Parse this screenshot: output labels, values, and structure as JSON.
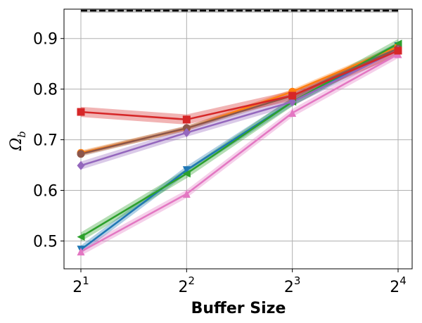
{
  "chart_data": {
    "type": "line",
    "xlabel": "Buffer Size",
    "ylabel": "Ω_b",
    "x": [
      2,
      4,
      8,
      16
    ],
    "x_scale": "log2",
    "xtick_labels": [
      {
        "base": "2",
        "exp": "1"
      },
      {
        "base": "2",
        "exp": "2"
      },
      {
        "base": "2",
        "exp": "3"
      },
      {
        "base": "2",
        "exp": "4"
      }
    ],
    "yticks": [
      0.5,
      0.6,
      0.7,
      0.8,
      0.9
    ],
    "ytick_labels": [
      "0.5",
      "0.6",
      "0.7",
      "0.8",
      "0.9"
    ],
    "ylim": [
      0.445,
      0.958
    ],
    "grid": true,
    "reference_line": {
      "value": 0.955,
      "band": 0.004,
      "style": "dashed",
      "color": "#000000"
    },
    "series": [
      {
        "color": "#1f77b4",
        "marker": "tri_down",
        "values": [
          0.483,
          0.64,
          0.775,
          0.885
        ],
        "band": 0.008
      },
      {
        "color": "#ff7f0e",
        "marker": "circle",
        "values": [
          0.674,
          0.722,
          0.795,
          0.884
        ],
        "band": 0.005
      },
      {
        "color": "#2ca02c",
        "marker": "tri_left",
        "values": [
          0.508,
          0.633,
          0.775,
          0.89
        ],
        "band": 0.009
      },
      {
        "color": "#8c564b",
        "marker": "circle",
        "values": [
          0.672,
          0.723,
          0.787,
          0.88
        ],
        "band": 0.005
      },
      {
        "color": "#9467bd",
        "marker": "diamond",
        "values": [
          0.649,
          0.714,
          0.775,
          0.877
        ],
        "band": 0.008
      },
      {
        "color": "#e377c2",
        "marker": "tri_up",
        "values": [
          0.479,
          0.593,
          0.753,
          0.869
        ],
        "band": 0.008
      },
      {
        "color": "#d62728",
        "marker": "square",
        "values": [
          0.755,
          0.74,
          0.787,
          0.876
        ],
        "band": 0.01
      }
    ]
  }
}
